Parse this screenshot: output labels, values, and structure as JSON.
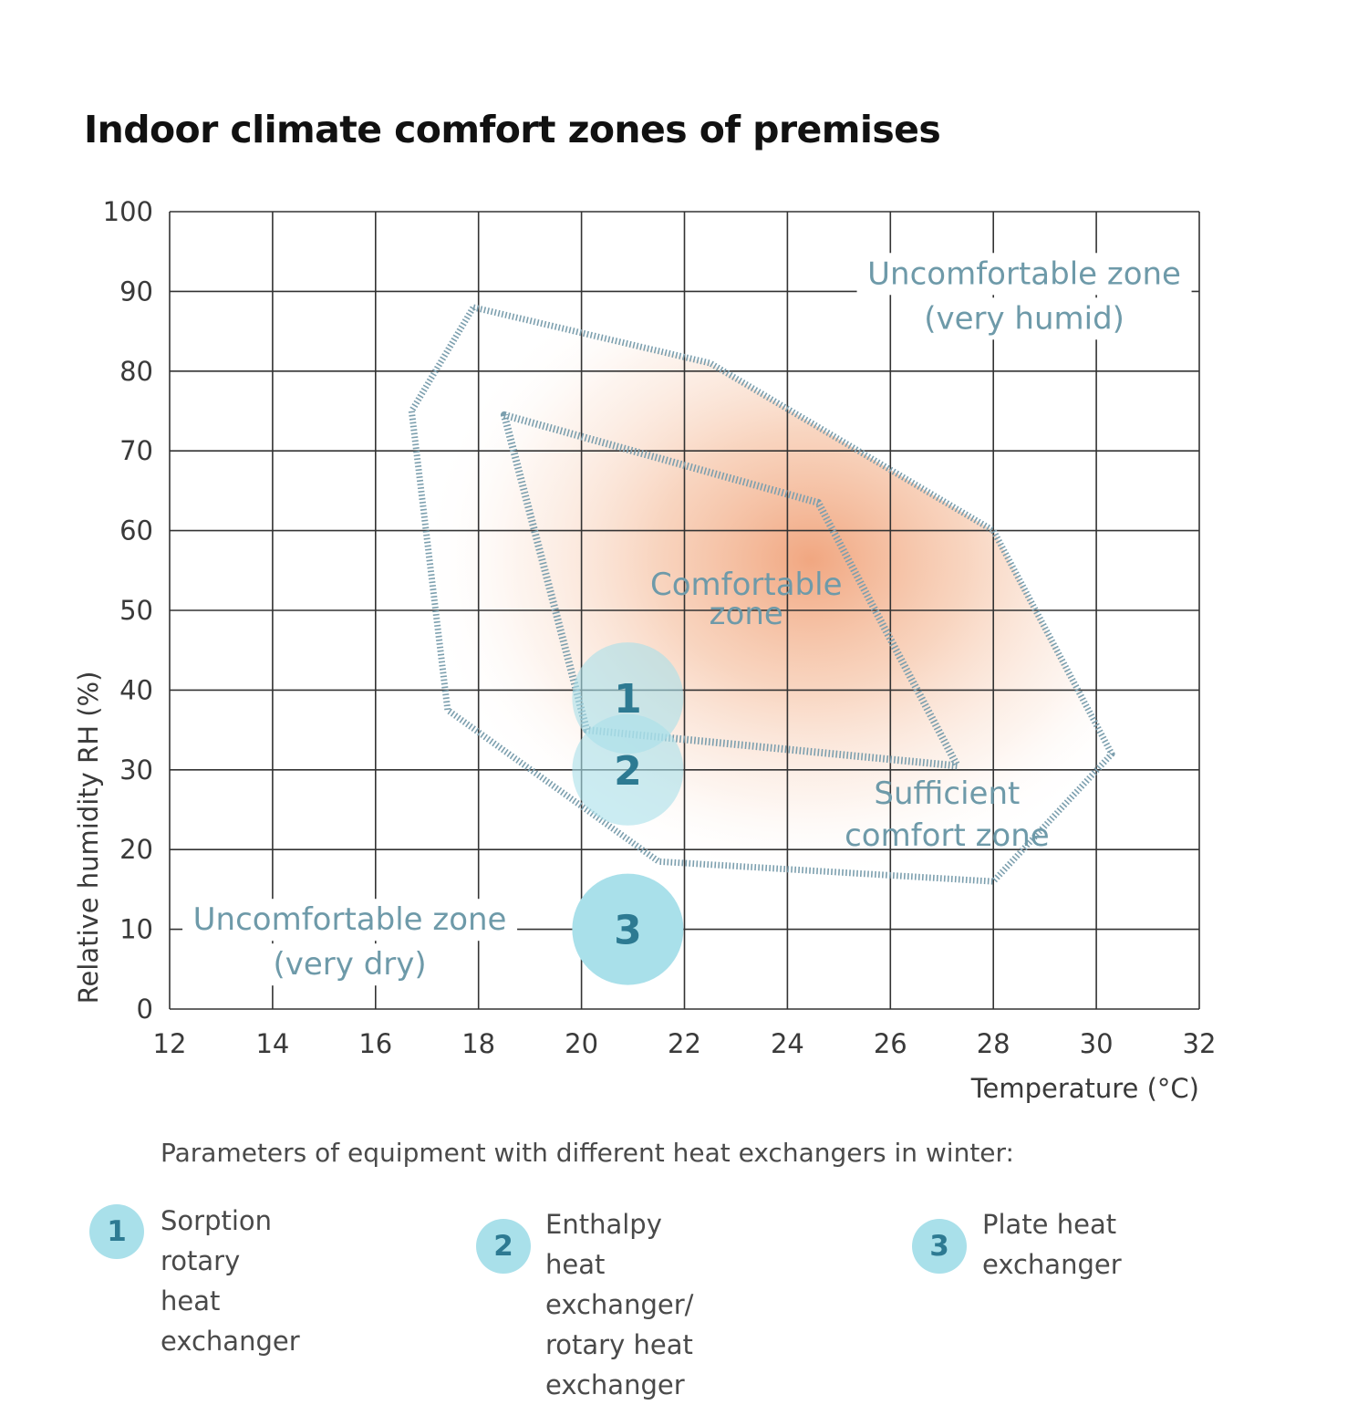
{
  "title": "Indoor climate comfort zones of premises",
  "colors": {
    "zone_label": "#6e9aa9",
    "zone_border": "#7c9fae",
    "comfort_glow": "#f0a27a",
    "badge_fill": "#a9e0ea",
    "badge_text": "#2d7a92",
    "grid": "#333333"
  },
  "chart_data": {
    "type": "scatter",
    "xlabel": "Temperature (°C)",
    "ylabel": "Relative humidity RH (%)",
    "xlim": [
      12,
      32
    ],
    "ylim": [
      0,
      100
    ],
    "xticks": [
      "12",
      "14",
      "16",
      "18",
      "20",
      "22",
      "24",
      "26",
      "28",
      "30",
      "32"
    ],
    "yticks": [
      "0",
      "10",
      "20",
      "30",
      "40",
      "50",
      "60",
      "70",
      "80",
      "90",
      "100"
    ],
    "grid": true,
    "regions": [
      {
        "name": "Sufficient comfort zone",
        "label_lines": [
          "Sufficient",
          "comfort zone"
        ],
        "label_at": [
          27.1,
          24.5
        ],
        "polygon": [
          [
            17.9,
            88
          ],
          [
            22.5,
            81
          ],
          [
            28.0,
            60
          ],
          [
            30.3,
            32
          ],
          [
            28.0,
            16
          ],
          [
            21.5,
            18.5
          ],
          [
            17.4,
            37.5
          ],
          [
            16.7,
            75
          ]
        ]
      },
      {
        "name": "Comfortable zone",
        "label_lines": [
          "Comfortable",
          "zone"
        ],
        "label_at": [
          23.2,
          51.5
        ],
        "polygon": [
          [
            18.5,
            74.5
          ],
          [
            24.6,
            63.5
          ],
          [
            27.3,
            30.5
          ],
          [
            20.1,
            35
          ]
        ]
      }
    ],
    "annotations": [
      {
        "lines": [
          "Uncomfortable zone",
          "(very humid)"
        ],
        "at": [
          28.6,
          89.5
        ],
        "role": "humid-zone-label"
      },
      {
        "lines": [
          "Uncomfortable zone",
          "(very dry)"
        ],
        "at": [
          15.5,
          8.5
        ],
        "role": "dry-zone-label"
      }
    ],
    "points": [
      {
        "label": "1",
        "x": 20.9,
        "y": 39,
        "opacity": 0.6
      },
      {
        "label": "2",
        "x": 20.9,
        "y": 30,
        "opacity": 0.6
      },
      {
        "label": "3",
        "x": 20.9,
        "y": 10,
        "opacity": 1.0
      }
    ]
  },
  "legend": {
    "heading": "Parameters of equipment with different heat exchangers in winter:",
    "items": [
      {
        "number": "1",
        "text_lines": [
          "Sorption rotary heat",
          "exchanger"
        ]
      },
      {
        "number": "2",
        "text_lines": [
          "Enthalpy heat exchanger/",
          "rotary heat exchanger"
        ]
      },
      {
        "number": "3",
        "text_lines": [
          "Plate heat exchanger"
        ]
      }
    ]
  }
}
